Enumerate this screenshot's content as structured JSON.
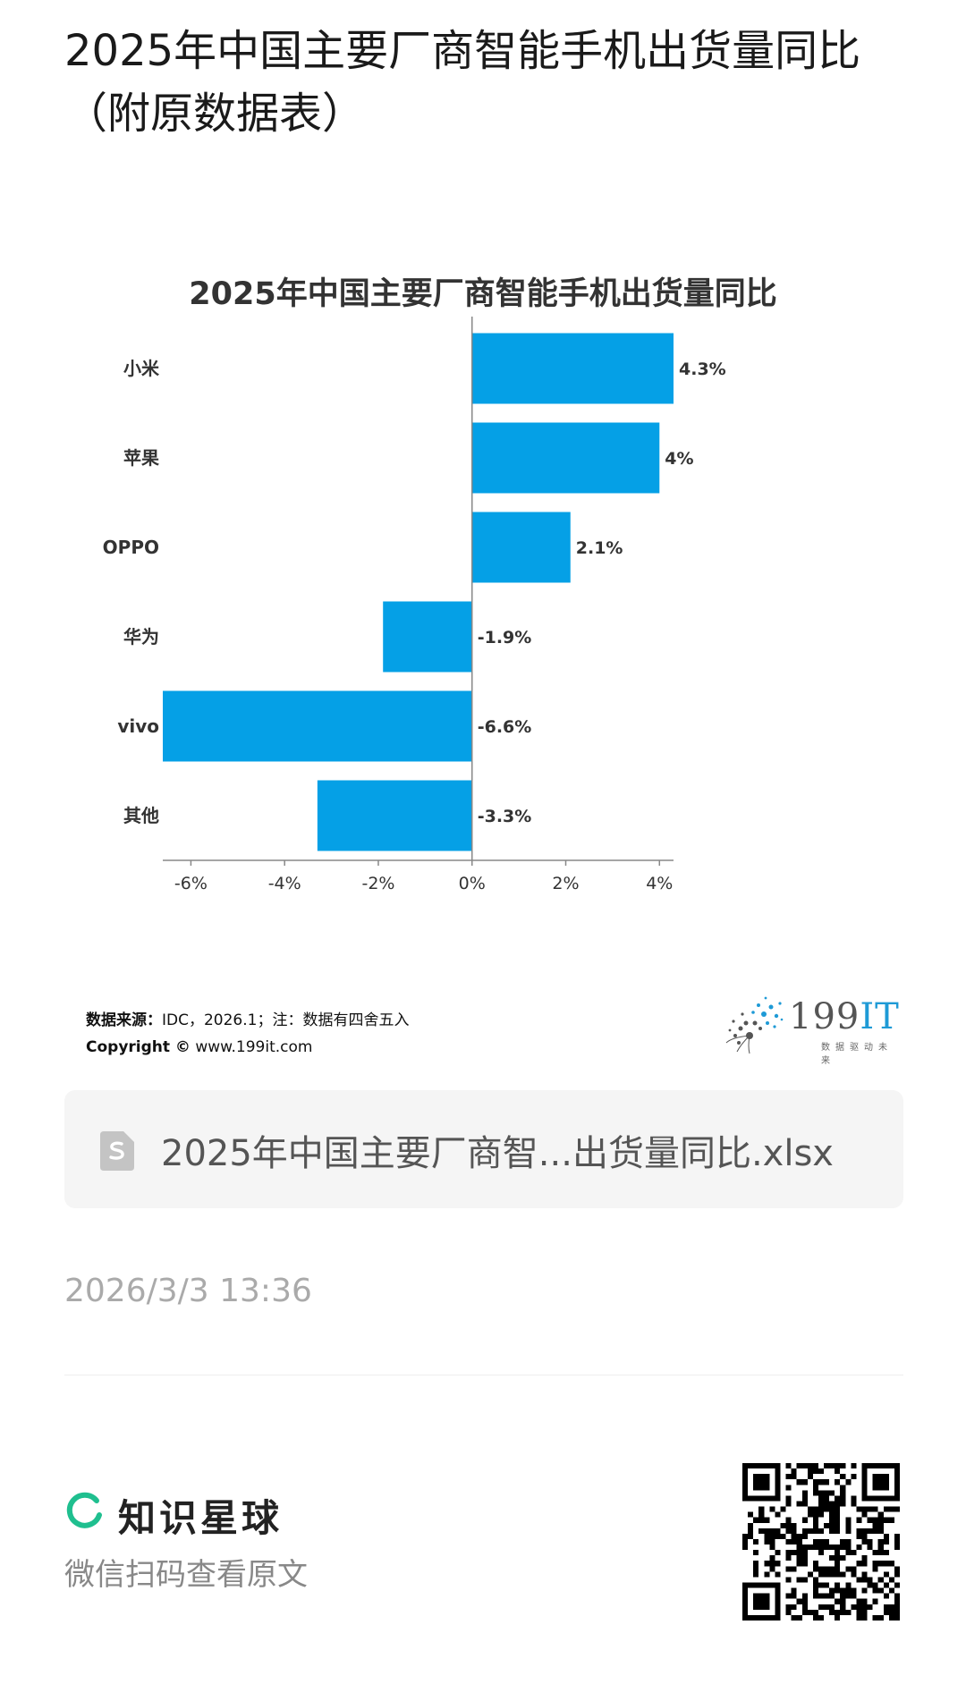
{
  "post": {
    "title": "2025年中国主要厂商智能手机出货量同比（附原数据表）"
  },
  "chart_data": {
    "type": "bar",
    "orientation": "horizontal",
    "title": "2025年中国主要厂商智能手机出货量同比",
    "categories": [
      "小米",
      "苹果",
      "OPPO",
      "华为",
      "vivo",
      "其他"
    ],
    "values": [
      4.3,
      4,
      2.1,
      -1.9,
      -6.6,
      -3.3
    ],
    "value_labels": [
      "4.3%",
      "4%",
      "2.1%",
      "-1.9%",
      "-6.6%",
      "-3.3%"
    ],
    "x_ticks": [
      "-6%",
      "-4%",
      "-2%",
      "0%",
      "2%",
      "4%"
    ],
    "x_tick_values": [
      -6,
      -4,
      -2,
      0,
      2,
      4
    ],
    "xlim": [
      -6.6,
      4.3
    ],
    "bar_color": "#05a0e6",
    "grid": false,
    "legend": "none"
  },
  "source": {
    "label": "数据来源：",
    "text": "IDC，2026.1；注：数据有四舍五入",
    "copyright_label": "Copyright ©",
    "copyright_site": "www.199it.com"
  },
  "brand": {
    "name_main": "199",
    "name_accent": "IT",
    "slogan": "数据驱动未来",
    "accent_color": "#1e9ad6"
  },
  "file": {
    "icon": "spreadsheet-file-icon",
    "name": "2025年中国主要厂商智...出货量同比.xlsx"
  },
  "meta": {
    "time": "2026/3/3 13:36"
  },
  "footer": {
    "app_name": "知识星球",
    "app_icon": "planet-ring-icon",
    "accent_color": "#1fbf8f",
    "scan_hint": "微信扫码查看原文",
    "qr_icon": "qr-code-icon"
  }
}
